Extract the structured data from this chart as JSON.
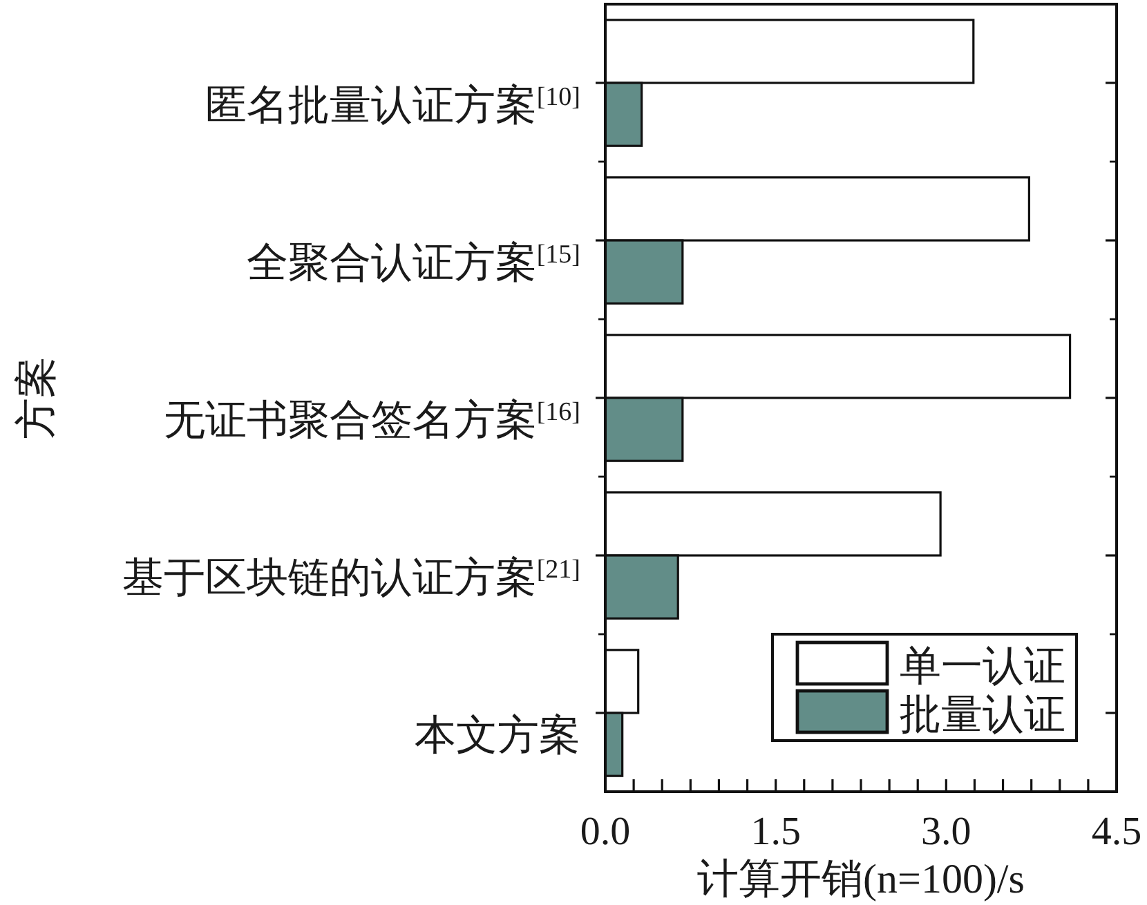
{
  "chart_data": {
    "type": "bar",
    "orientation": "horizontal",
    "xlabel": "计算开销(n=100)/s",
    "ylabel": "方案",
    "categories": [
      "匿名批量认证方案$^{[10]}$",
      "全聚合认证方案$^{[15]}$",
      "无证书聚合签名方案$^{[16]}$",
      "基于区块链的认证方案$^{[21]}$",
      "本文方案"
    ],
    "series": [
      {
        "name": "单一认证",
        "color": "#ffffff",
        "values": [
          3.24,
          3.73,
          4.09,
          2.95,
          0.29
        ]
      },
      {
        "name": "批量认证",
        "color": "#628d88",
        "values": [
          0.32,
          0.68,
          0.68,
          0.64,
          0.15
        ]
      }
    ],
    "xlim": [
      0,
      4.5
    ],
    "xticks": [
      {
        "value": 0,
        "label": "0.0"
      },
      {
        "value": 0.25,
        "label": null
      },
      {
        "value": 0.5,
        "label": null
      },
      {
        "value": 0.75,
        "label": null
      },
      {
        "value": 1,
        "label": null
      },
      {
        "value": 1.25,
        "label": null
      },
      {
        "value": 1.5,
        "label": "1.5"
      },
      {
        "value": 1.75,
        "label": null
      },
      {
        "value": 2,
        "label": null
      },
      {
        "value": 2.25,
        "label": null
      },
      {
        "value": 2.5,
        "label": null
      },
      {
        "value": 2.75,
        "label": null
      },
      {
        "value": 3,
        "label": "3.0"
      },
      {
        "value": 3.25,
        "label": null
      },
      {
        "value": 3.5,
        "label": null
      },
      {
        "value": 3.75,
        "label": null
      },
      {
        "value": 4,
        "label": null
      },
      {
        "value": 4.25,
        "label": null
      },
      {
        "value": 4.5,
        "label": "4.5"
      }
    ],
    "legend": "bottom right"
  }
}
